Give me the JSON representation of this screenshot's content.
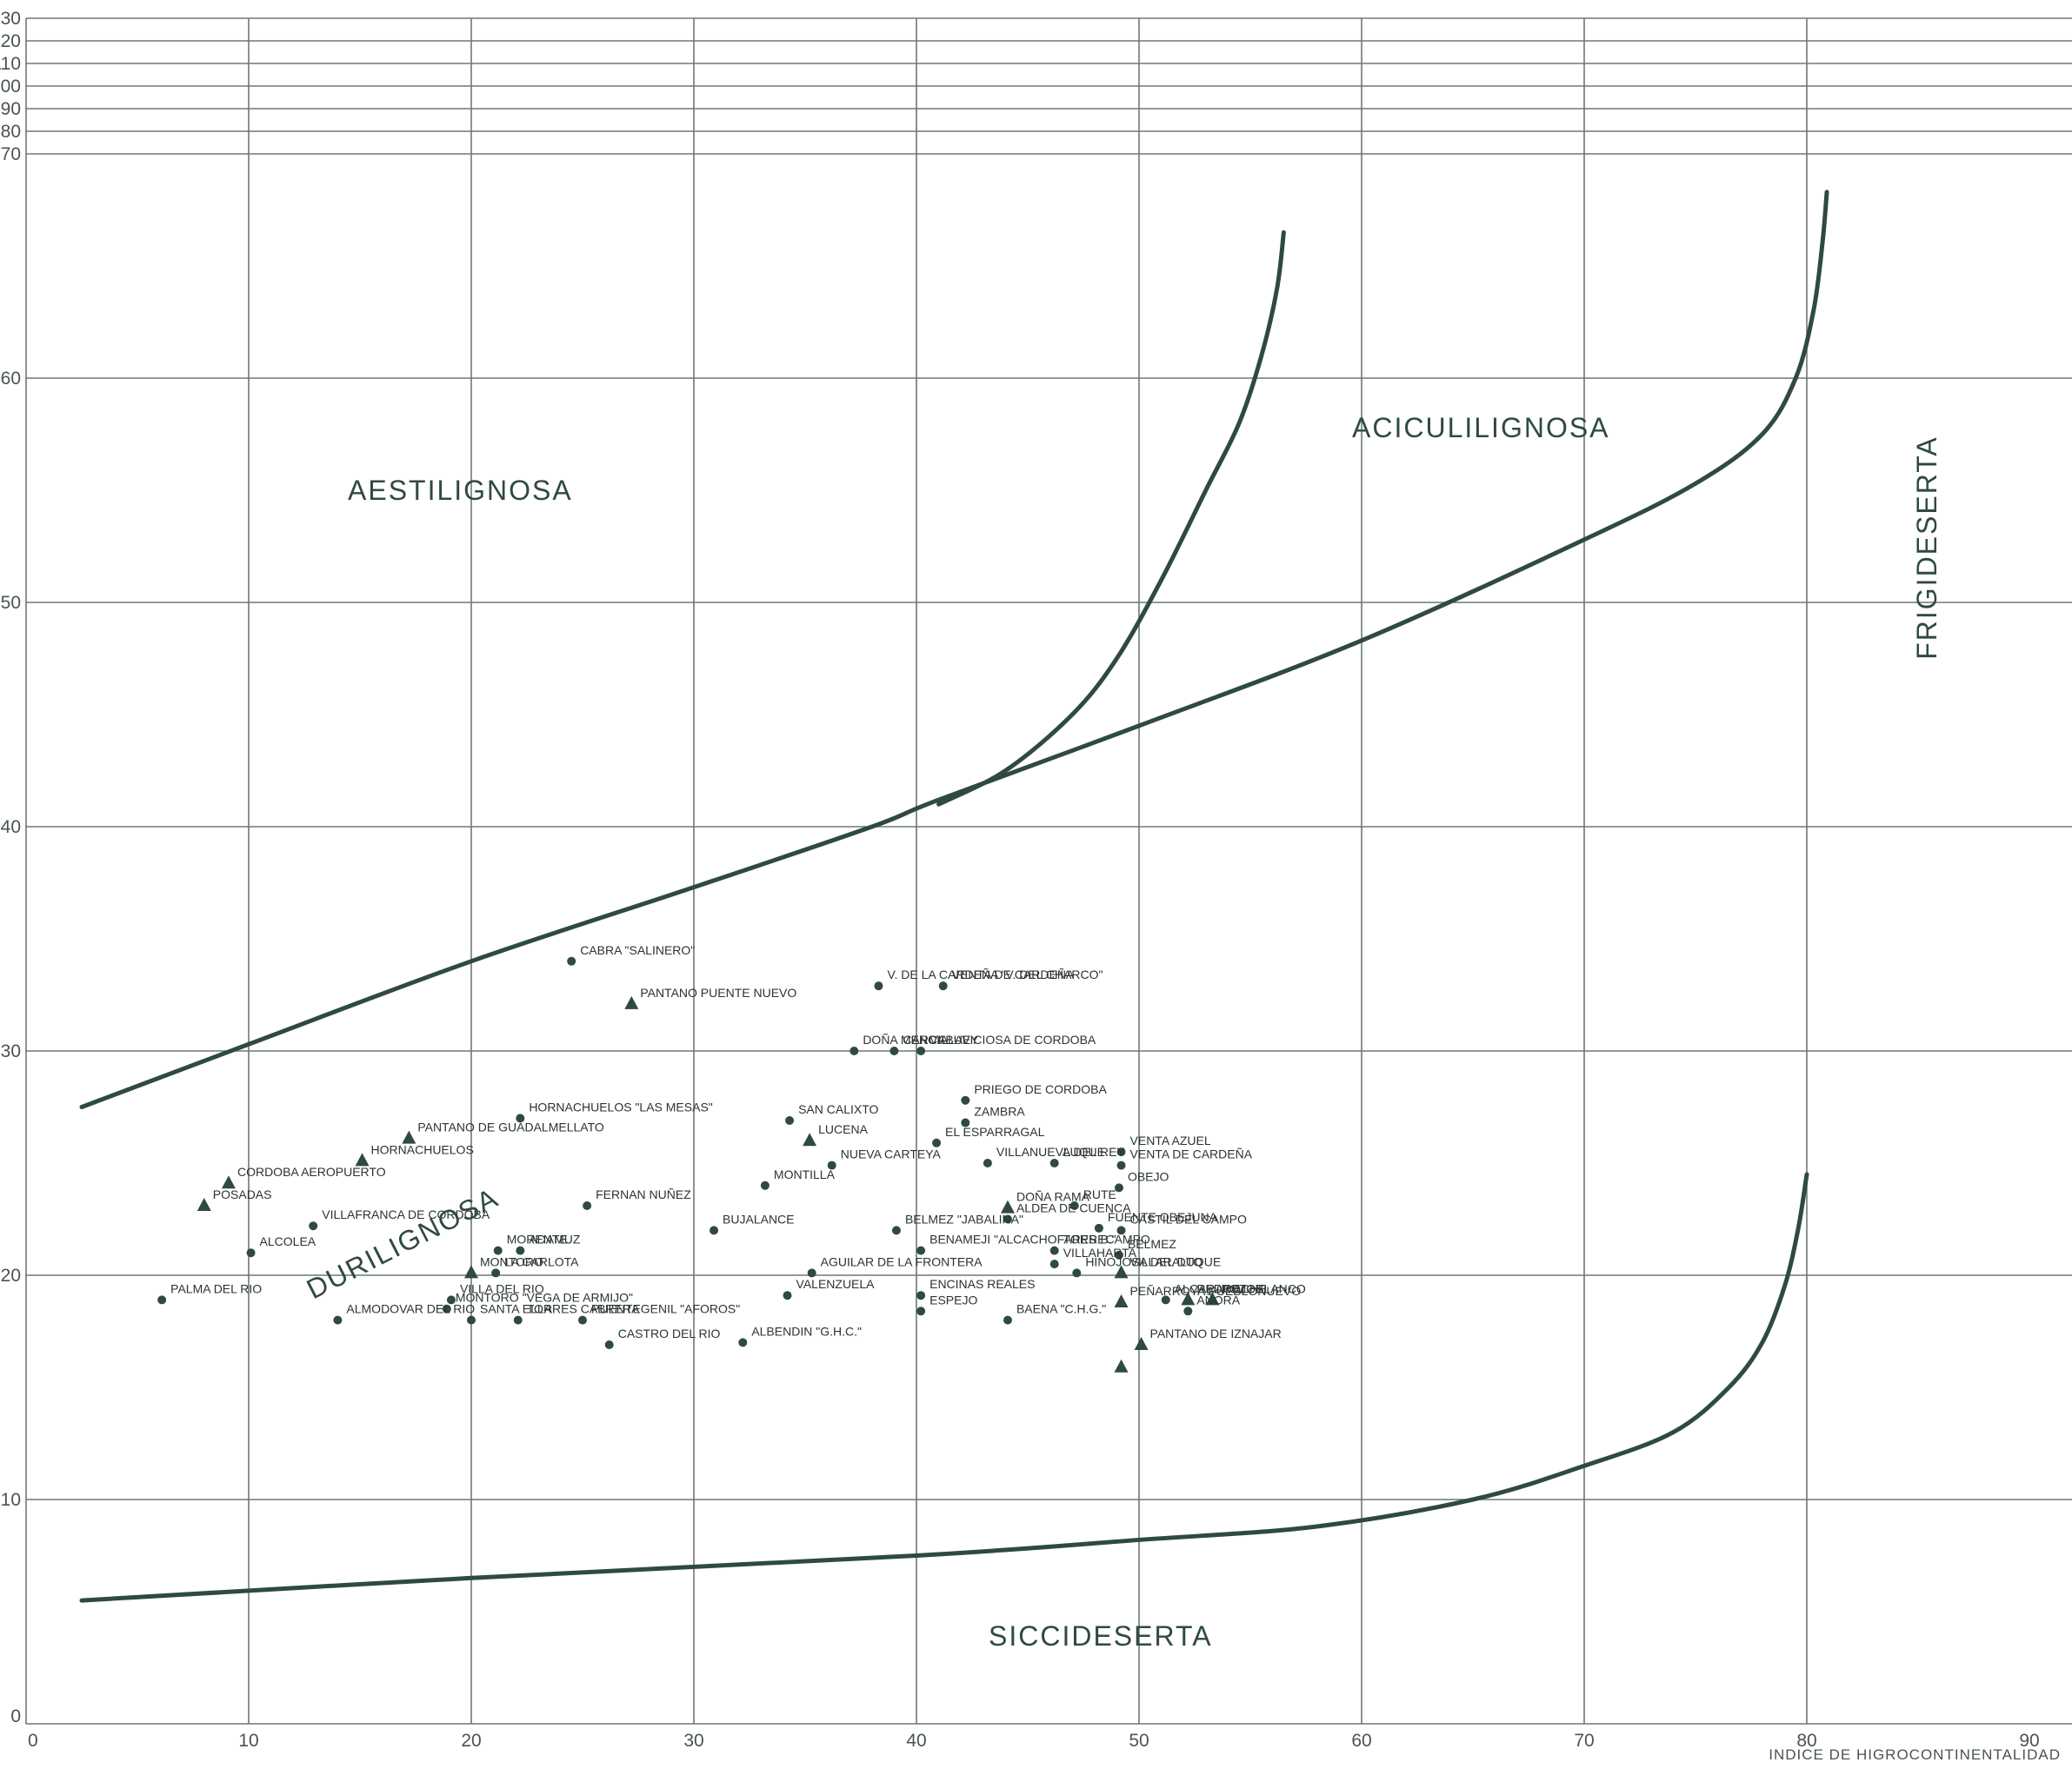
{
  "chart_data": {
    "type": "scatter",
    "title": "",
    "xlabel": "INDICE DE HIGROCONTINENTALIDAD",
    "ylabel": "",
    "xlim": [
      0,
      90
    ],
    "ylim": [
      0,
      130
    ],
    "x_ticks": [
      "0",
      "10",
      "20",
      "30",
      "40",
      "50",
      "60",
      "70",
      "80",
      "90"
    ],
    "y_ticks": [
      "0",
      "10",
      "20",
      "30",
      "40",
      "50",
      "60",
      "70",
      "80",
      "90",
      "100",
      "110",
      "120",
      "130"
    ],
    "grid": true,
    "colors": {
      "mark": "#2f4a40",
      "grid": "#6f7873",
      "text": "#2a3430"
    },
    "regions": [
      "AESTILIGNOSA",
      "ACICULILIGNOSA",
      "FRIGIDESERTA",
      "DURILIGNOSA",
      "SICCIDESERTA"
    ],
    "boundaries": [
      {
        "points": [
          [
            2.5,
            27.5
          ],
          [
            10,
            30.3
          ],
          [
            20,
            34
          ],
          [
            30,
            37.3
          ],
          [
            38,
            40
          ],
          [
            41,
            41.2
          ],
          [
            50,
            44.5
          ],
          [
            60,
            48.3
          ],
          [
            70,
            52.8
          ],
          [
            75,
            55.3
          ],
          [
            78,
            57.5
          ],
          [
            79.5,
            60
          ],
          [
            80.3,
            63
          ],
          [
            80.7,
            66
          ],
          [
            80.9,
            68.3
          ]
        ]
      },
      {
        "points": [
          [
            41,
            41
          ],
          [
            44,
            42.5
          ],
          [
            47,
            45
          ],
          [
            49,
            47.5
          ],
          [
            51,
            51
          ],
          [
            53,
            55
          ],
          [
            54.5,
            58
          ],
          [
            55.5,
            61
          ],
          [
            56.2,
            64
          ],
          [
            56.5,
            66.5
          ]
        ]
      },
      {
        "points": [
          [
            2.5,
            5.5
          ],
          [
            20,
            6.5
          ],
          [
            40,
            7.5
          ],
          [
            50,
            8.2
          ],
          [
            58,
            8.8
          ],
          [
            65,
            10
          ],
          [
            70,
            11.5
          ],
          [
            74,
            13
          ],
          [
            76.5,
            15
          ],
          [
            78,
            17
          ],
          [
            79,
            19.5
          ],
          [
            79.6,
            22
          ],
          [
            80,
            24.5
          ]
        ]
      }
    ],
    "series": [
      {
        "marker": "circle",
        "points": [
          {
            "label": "CABRA \"SALINERO\"",
            "x": 24.5,
            "y": 34.0
          },
          {
            "label": "V. DE LA CARDEÑA \"V. DEL CHARCO\"",
            "x": 38.3,
            "y": 32.9
          },
          {
            "label": "VENTA DE CARDEÑA",
            "x": 41.2,
            "y": 32.9
          },
          {
            "label": "DOÑA MENCIA",
            "x": 37.2,
            "y": 30.0
          },
          {
            "label": "CARCABUEY",
            "x": 39.0,
            "y": 30.0
          },
          {
            "label": "VILLAVICIOSA DE CORDOBA",
            "x": 40.2,
            "y": 30.0
          },
          {
            "label": "HORNACHUELOS \"LAS MESAS\"",
            "x": 22.2,
            "y": 27.0
          },
          {
            "label": "PRIEGO DE CORDOBA",
            "x": 42.2,
            "y": 27.8
          },
          {
            "label": "SAN CALIXTO",
            "x": 34.3,
            "y": 26.9
          },
          {
            "label": "ZAMBRA",
            "x": 42.2,
            "y": 26.8
          },
          {
            "label": "EL ESPARRAGAL",
            "x": 40.9,
            "y": 25.9
          },
          {
            "label": "VILLANUEVA DEL REY",
            "x": 43.2,
            "y": 25.0
          },
          {
            "label": "LUQUE",
            "x": 46.2,
            "y": 25.0
          },
          {
            "label": "VENTA AZUEL",
            "x": 49.2,
            "y": 25.5
          },
          {
            "label": "VENTA DE CARDEÑA",
            "x": 49.2,
            "y": 24.9
          },
          {
            "label": "NUEVA CARTEYA",
            "x": 36.2,
            "y": 24.9
          },
          {
            "label": "MONTILLA",
            "x": 33.2,
            "y": 24.0
          },
          {
            "label": "OBEJO",
            "x": 49.1,
            "y": 23.9
          },
          {
            "label": "FERNAN NUÑEZ",
            "x": 25.2,
            "y": 23.1
          },
          {
            "label": "VILLAFRANCA DE CORDOBA",
            "x": 12.9,
            "y": 22.2
          },
          {
            "label": "RUTE",
            "x": 47.1,
            "y": 23.1
          },
          {
            "label": "FUENTE OBEJUNA",
            "x": 48.2,
            "y": 22.1
          },
          {
            "label": "ALDEA DE CUENCA",
            "x": 44.1,
            "y": 22.5
          },
          {
            "label": "BUJALANCE",
            "x": 30.9,
            "y": 22.0
          },
          {
            "label": "BELMEZ \"JABALINA\"",
            "x": 39.1,
            "y": 22.0
          },
          {
            "label": "CASTIL DEL CAMPO",
            "x": 49.2,
            "y": 22.0
          },
          {
            "label": "ALCOLEA",
            "x": 10.1,
            "y": 21.0
          },
          {
            "label": "MORENTE",
            "x": 21.2,
            "y": 21.1
          },
          {
            "label": "ADAMUZ",
            "x": 22.2,
            "y": 21.1
          },
          {
            "label": "BENAMEJI \"ALCACHOFARES B.\"",
            "x": 40.2,
            "y": 21.1
          },
          {
            "label": "TORRECAMPO",
            "x": 46.2,
            "y": 21.1
          },
          {
            "label": "BELMEZ",
            "x": 49.1,
            "y": 20.9
          },
          {
            "label": "AGUILAR DE LA FRONTERA",
            "x": 35.3,
            "y": 20.1
          },
          {
            "label": "VILLAHARTA",
            "x": 46.2,
            "y": 20.5
          },
          {
            "label": "HINOJOSA DEL DUQUE",
            "x": 47.2,
            "y": 20.1
          },
          {
            "label": "LA CARLOTA",
            "x": 21.1,
            "y": 20.1
          },
          {
            "label": "PALMA DEL RIO",
            "x": 6.1,
            "y": 18.9
          },
          {
            "label": "VALENZUELA",
            "x": 34.2,
            "y": 19.1
          },
          {
            "label": "ENCINAS REALES",
            "x": 40.2,
            "y": 19.1
          },
          {
            "label": "ESPEJO",
            "x": 40.2,
            "y": 18.4
          },
          {
            "label": "VILLA DEL RIO",
            "x": 19.1,
            "y": 18.9
          },
          {
            "label": "MONTORO \"VEGA DE ARMIJO\"",
            "x": 18.9,
            "y": 18.5
          },
          {
            "label": "ALMODOVAR DEL RIO",
            "x": 14.0,
            "y": 18.0
          },
          {
            "label": "SANTA ELLA",
            "x": 20.0,
            "y": 18.0
          },
          {
            "label": "TORRES CABRERA",
            "x": 22.1,
            "y": 18.0
          },
          {
            "label": "PUENTEGENIL \"AFOROS\"",
            "x": 25.0,
            "y": 18.0
          },
          {
            "label": "CASTRO DEL RIO",
            "x": 26.2,
            "y": 16.9
          },
          {
            "label": "ALBENDIN \"G.H.C.\"",
            "x": 32.2,
            "y": 17.0
          },
          {
            "label": "BAENA \"C.H.G.\"",
            "x": 44.1,
            "y": 18.0
          },
          {
            "label": "AÑORA",
            "x": 52.2,
            "y": 18.4
          },
          {
            "label": "ALCARACEJOS",
            "x": 51.2,
            "y": 18.9
          }
        ]
      },
      {
        "marker": "triangle",
        "points": [
          {
            "label": "PANTANO PUENTE NUEVO",
            "x": 27.2,
            "y": 32.1
          },
          {
            "label": "PANTANO DE GUADALMELLATO",
            "x": 17.2,
            "y": 26.1
          },
          {
            "label": "HORNACHUELOS",
            "x": 15.1,
            "y": 25.1
          },
          {
            "label": "CORDOBA AEROPUERTO",
            "x": 9.1,
            "y": 24.1
          },
          {
            "label": "POSADAS",
            "x": 8.0,
            "y": 23.1
          },
          {
            "label": "LUCENA",
            "x": 35.2,
            "y": 26.0
          },
          {
            "label": "DOÑA RAMA",
            "x": 44.1,
            "y": 23.0
          },
          {
            "label": "MONTORO",
            "x": 20.0,
            "y": 20.1
          },
          {
            "label": "VILLARALTO",
            "x": 49.2,
            "y": 20.1
          },
          {
            "label": "REDROCHE",
            "x": 52.2,
            "y": 18.9
          },
          {
            "label": "POZOBLANCO",
            "x": 53.3,
            "y": 18.9
          },
          {
            "label": "PEÑARROYA PUEBLONUEVO",
            "x": 49.2,
            "y": 18.8
          },
          {
            "label": "PANTANO DE IZNAJAR",
            "x": 50.1,
            "y": 16.9
          },
          {
            "label": "",
            "x": 49.2,
            "y": 15.9
          }
        ]
      }
    ]
  }
}
